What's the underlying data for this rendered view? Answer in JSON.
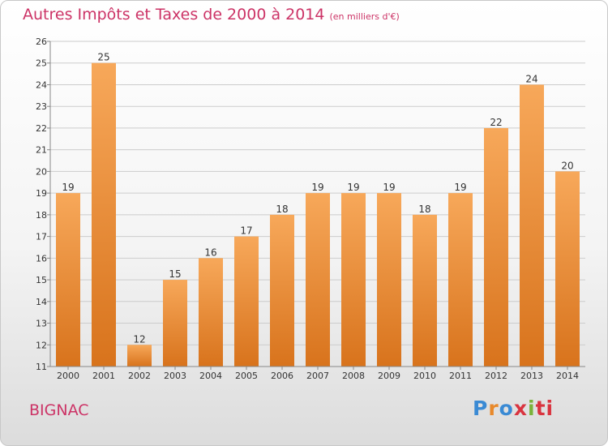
{
  "header": {
    "title": "Autres Impôts et Taxes de 2000 à 2014",
    "subtitle": "(en milliers d'€)"
  },
  "footer": {
    "place": "BIGNAC",
    "logo_letters": [
      "P",
      "r",
      "o",
      "x",
      "i",
      "ti"
    ]
  },
  "colors": {
    "title": "#cc3366",
    "bar_light": "#f7a85a",
    "bar_dark": "#d8731c",
    "grid": "#cccccc"
  },
  "chart_data": {
    "type": "bar",
    "categories": [
      "2000",
      "2001",
      "2002",
      "2003",
      "2004",
      "2005",
      "2006",
      "2007",
      "2008",
      "2009",
      "2010",
      "2011",
      "2012",
      "2013",
      "2014"
    ],
    "values": [
      19,
      25,
      12,
      15,
      16,
      17,
      18,
      19,
      19,
      19,
      18,
      19,
      22,
      24,
      20
    ],
    "ylim": [
      11,
      26
    ],
    "yticks": [
      11,
      12,
      13,
      14,
      15,
      16,
      17,
      18,
      19,
      20,
      21,
      22,
      23,
      24,
      25,
      26
    ],
    "grid": true,
    "data_labels": true
  }
}
